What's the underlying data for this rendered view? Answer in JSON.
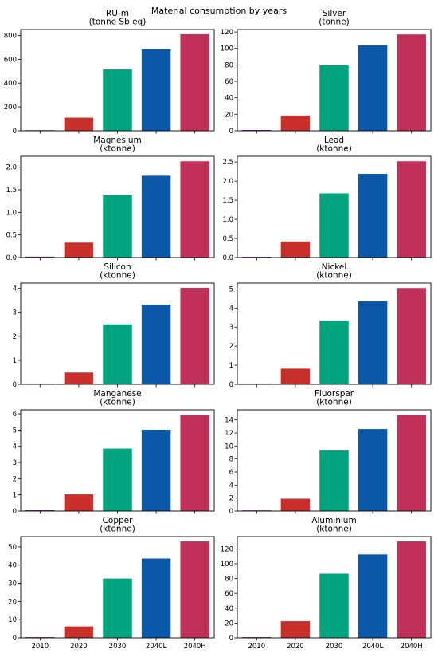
{
  "suptitle": "Material consumption by years",
  "colors": [
    "#7b2d9c",
    "#c9302c",
    "#00a47f",
    "#0b57a8",
    "#c13058"
  ],
  "chart_data": [
    {
      "type": "bar",
      "title": "RU-m\n(tonne Sb eq)",
      "categories": [
        "2010",
        "2020",
        "2030",
        "2040L",
        "2040H"
      ],
      "values": [
        5,
        110,
        515,
        685,
        810
      ],
      "ylim": [
        0,
        850
      ],
      "yticks": [
        0,
        200,
        400,
        600,
        800
      ],
      "show_xlabels": false,
      "grid": false
    },
    {
      "type": "bar",
      "title": "Silver\n(tonne)",
      "categories": [
        "2010",
        "2020",
        "2030",
        "2040L",
        "2040H"
      ],
      "values": [
        1.0,
        18.5,
        79.5,
        104,
        117
      ],
      "ylim": [
        0,
        123
      ],
      "yticks": [
        0,
        20,
        40,
        60,
        80,
        100,
        120
      ],
      "show_xlabels": false,
      "grid": false
    },
    {
      "type": "bar",
      "title": "Magnesium\n(ktonne)",
      "categories": [
        "2010",
        "2020",
        "2030",
        "2040L",
        "2040H"
      ],
      "values": [
        0.02,
        0.33,
        1.38,
        1.81,
        2.13
      ],
      "ylim": [
        0,
        2.24
      ],
      "yticks": [
        0.0,
        0.5,
        1.0,
        1.5,
        2.0
      ],
      "tick_decimals": 1,
      "show_xlabels": false,
      "grid": false
    },
    {
      "type": "bar",
      "title": "Lead\n(ktonne)",
      "categories": [
        "2010",
        "2020",
        "2030",
        "2040L",
        "2040H"
      ],
      "values": [
        0.02,
        0.42,
        1.68,
        2.19,
        2.52
      ],
      "ylim": [
        0,
        2.65
      ],
      "yticks": [
        0.0,
        0.5,
        1.0,
        1.5,
        2.0,
        2.5
      ],
      "tick_decimals": 1,
      "show_xlabels": false,
      "grid": false
    },
    {
      "type": "bar",
      "title": "Silicon\n(ktonne)",
      "categories": [
        "2010",
        "2020",
        "2030",
        "2040L",
        "2040H"
      ],
      "values": [
        0.03,
        0.49,
        2.5,
        3.32,
        4.02
      ],
      "ylim": [
        0,
        4.22
      ],
      "yticks": [
        0,
        1,
        2,
        3,
        4
      ],
      "show_xlabels": false,
      "grid": false
    },
    {
      "type": "bar",
      "title": "Nickel\n(ktonne)",
      "categories": [
        "2010",
        "2020",
        "2030",
        "2040L",
        "2040H"
      ],
      "values": [
        0.04,
        0.82,
        3.33,
        4.35,
        5.05
      ],
      "ylim": [
        0,
        5.31
      ],
      "yticks": [
        0,
        1,
        2,
        3,
        4,
        5
      ],
      "show_xlabels": false,
      "grid": false
    },
    {
      "type": "bar",
      "title": "Manganese\n(ktonne)",
      "categories": [
        "2010",
        "2020",
        "2030",
        "2040L",
        "2040H"
      ],
      "values": [
        0.05,
        1.03,
        3.86,
        5.02,
        5.95
      ],
      "ylim": [
        0,
        6.25
      ],
      "yticks": [
        0,
        1,
        2,
        3,
        4,
        5,
        6
      ],
      "show_xlabels": false,
      "grid": false
    },
    {
      "type": "bar",
      "title": "Fluorspar\n(ktonne)",
      "categories": [
        "2010",
        "2020",
        "2030",
        "2040L",
        "2040H"
      ],
      "values": [
        0.1,
        1.9,
        9.3,
        12.6,
        14.8
      ],
      "ylim": [
        0,
        15.55
      ],
      "yticks": [
        0,
        2,
        4,
        6,
        8,
        10,
        12,
        14
      ],
      "show_xlabels": false,
      "grid": false
    },
    {
      "type": "bar",
      "title": "Copper\n(ktonne)",
      "categories": [
        "2010",
        "2020",
        "2030",
        "2040L",
        "2040H"
      ],
      "values": [
        0.4,
        6.3,
        32.6,
        43.6,
        53.0
      ],
      "ylim": [
        0,
        55.65
      ],
      "yticks": [
        0,
        10,
        20,
        30,
        40,
        50
      ],
      "show_xlabels": true,
      "grid": false
    },
    {
      "type": "bar",
      "title": "Aluminium\n(ktonne)",
      "categories": [
        "2010",
        "2020",
        "2030",
        "2040L",
        "2040H"
      ],
      "values": [
        1.0,
        22.5,
        86.5,
        112.5,
        130
      ],
      "ylim": [
        0,
        136.5
      ],
      "yticks": [
        0,
        20,
        40,
        60,
        80,
        100,
        120
      ],
      "show_xlabels": true,
      "grid": false
    }
  ]
}
